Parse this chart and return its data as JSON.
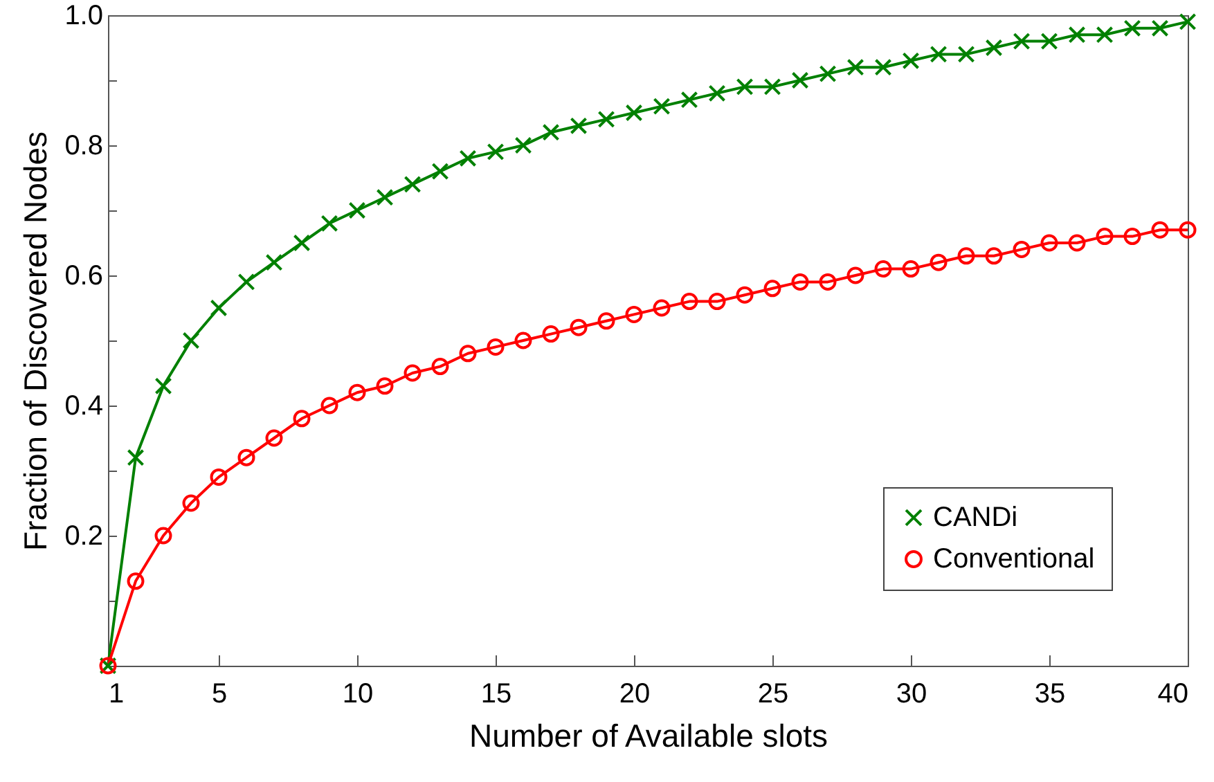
{
  "chart_data": {
    "type": "line",
    "xlabel": "Number of Available slots",
    "ylabel": "Fraction of Discovered Nodes",
    "x": [
      1,
      2,
      3,
      4,
      5,
      6,
      7,
      8,
      9,
      10,
      11,
      12,
      13,
      14,
      15,
      16,
      17,
      18,
      19,
      20,
      21,
      22,
      23,
      24,
      25,
      26,
      27,
      28,
      29,
      30,
      31,
      32,
      33,
      34,
      35,
      36,
      37,
      38,
      39,
      40
    ],
    "series": [
      {
        "name": "CANDi",
        "color": "#008000",
        "marker": "cross",
        "values": [
          0,
          0.32,
          0.43,
          0.5,
          0.55,
          0.59,
          0.62,
          0.65,
          0.68,
          0.7,
          0.72,
          0.74,
          0.76,
          0.78,
          0.79,
          0.8,
          0.82,
          0.83,
          0.84,
          0.85,
          0.86,
          0.87,
          0.88,
          0.89,
          0.89,
          0.9,
          0.91,
          0.92,
          0.92,
          0.93,
          0.94,
          0.94,
          0.95,
          0.96,
          0.96,
          0.97,
          0.97,
          0.98,
          0.98,
          0.99
        ]
      },
      {
        "name": "Conventional",
        "color": "#ff0000",
        "marker": "circle",
        "values": [
          0,
          0.13,
          0.2,
          0.25,
          0.29,
          0.32,
          0.35,
          0.38,
          0.4,
          0.42,
          0.43,
          0.45,
          0.46,
          0.48,
          0.49,
          0.5,
          0.51,
          0.52,
          0.53,
          0.54,
          0.55,
          0.56,
          0.56,
          0.57,
          0.58,
          0.59,
          0.59,
          0.6,
          0.61,
          0.61,
          0.62,
          0.63,
          0.63,
          0.64,
          0.65,
          0.65,
          0.66,
          0.66,
          0.67,
          0.67
        ]
      }
    ],
    "xlim": [
      1,
      40
    ],
    "xticks": [
      1,
      5,
      10,
      15,
      20,
      25,
      30,
      35,
      40
    ],
    "ylim": [
      0,
      1
    ],
    "yticks": [
      {
        "value": 0,
        "label": null
      },
      {
        "value": 0.1,
        "label": null
      },
      0.2,
      {
        "value": 0.3,
        "label": null
      },
      0.4,
      {
        "value": 0.5,
        "label": null
      },
      0.6,
      {
        "value": 0.7,
        "label": null
      },
      0.8,
      {
        "value": 0.9,
        "label": null
      },
      {
        "value": 1,
        "label": "1.0"
      }
    ],
    "grid": false,
    "legend": "bottom right",
    "line_style": "solid"
  }
}
